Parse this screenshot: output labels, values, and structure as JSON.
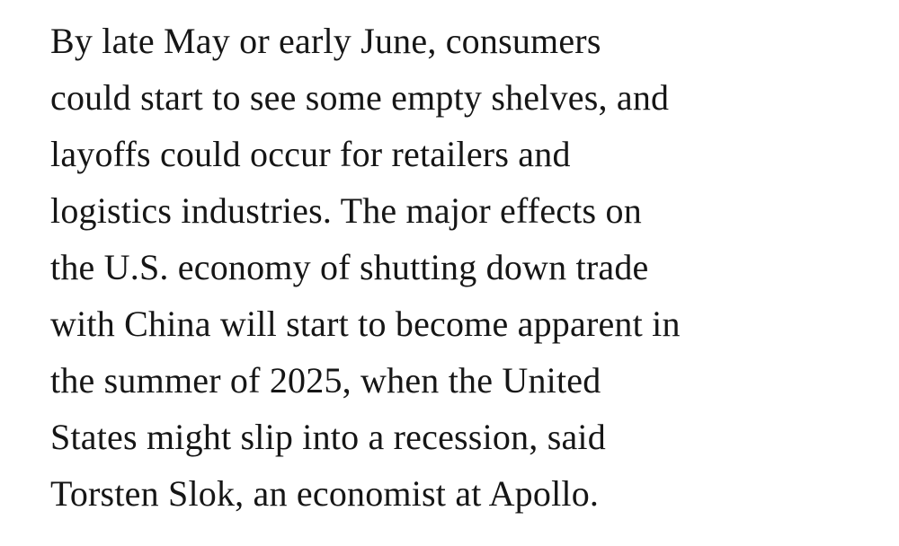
{
  "article": {
    "paragraph_text": "By late May or early June, consumers could start to see some empty shelves, and layoffs could occur for retailers and logistics industries. The major effects on the U.S. economy of shutting down trade with China will start to become apparent in the summer of 2025, when the United States might slip into a recession, said Torsten Slok, an economist at Apollo.",
    "paragraph_lines": [
      "By late May or early June, consumers",
      "could start to see some empty shelves, and",
      "layoffs could occur for retailers and",
      "logistics industries. The major effects on",
      "the U.S. economy of shutting down trade",
      "with China will start to become apparent in",
      "the summer of 2025, when the United",
      "States might slip into a recession, said",
      "Torsten Slok, an economist at Apollo."
    ],
    "colors": {
      "text": "#161616",
      "background": "#ffffff"
    }
  }
}
